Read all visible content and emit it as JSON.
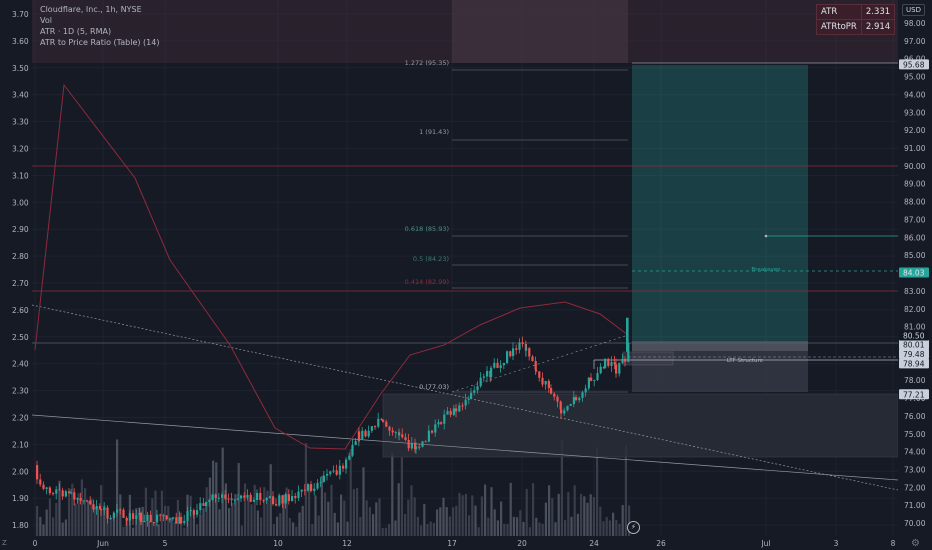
{
  "legend": {
    "symbol_line": "Cloudflare, Inc., 1h, NYSE",
    "vol_line": "Vol",
    "atr_line": "ATR · 1D (5, RMA)",
    "table_line": "ATR to Price Ratio (Table) (14)"
  },
  "atr_table": {
    "rows": [
      {
        "label": "ATR",
        "value": "2.331"
      },
      {
        "label": "ATRtoPR",
        "value": "2.914"
      }
    ]
  },
  "currency_button": "USD",
  "corner_label": "Z",
  "settings_icon": "gear-icon",
  "alert_icon": "lightning-icon",
  "left_axis": {
    "labels": [
      "3.70",
      "3.60",
      "3.50",
      "3.40",
      "3.30",
      "3.20",
      "3.10",
      "3.00",
      "2.90",
      "2.80",
      "2.70",
      "2.60",
      "2.50",
      "2.40",
      "2.30",
      "2.20",
      "2.10",
      "2.00",
      "1.90",
      "1.80"
    ]
  },
  "right_axis": {
    "labels": [
      "98.00",
      "97.00",
      "96.00",
      "95.00",
      "94.00",
      "93.00",
      "92.00",
      "91.00",
      "90.00",
      "89.00",
      "88.00",
      "87.00",
      "86.00",
      "85.00",
      "84.00",
      "83.00",
      "82.00",
      "81.00",
      "80.00",
      "79.00",
      "78.00",
      "77.00",
      "76.00",
      "75.00",
      "74.00",
      "73.00",
      "72.00",
      "71.00",
      "70.00"
    ]
  },
  "price_tags": [
    {
      "value": "95.68",
      "color": "#c9d0db",
      "text": "#131722"
    },
    {
      "value": "84.03",
      "color": "#26a69a",
      "text": "#e0e3eb"
    },
    {
      "value": "80.01",
      "color": "#c9d0db",
      "text": "#131722"
    },
    {
      "value": "80.50",
      "color": "#131722",
      "text": "#d1d4dc"
    },
    {
      "value": "79.48",
      "color": "#c9d0db",
      "text": "#131722"
    },
    {
      "value": "78.94",
      "color": "#c9d0db",
      "text": "#131722"
    },
    {
      "value": "77.21",
      "color": "#c9d0db",
      "text": "#131722"
    }
  ],
  "x_axis": {
    "labels": [
      "0",
      "Jun",
      "5",
      "10",
      "12",
      "17",
      "20",
      "24",
      "26",
      "Jul",
      "3",
      "8"
    ]
  },
  "fib_labels": [
    "1.272 (95.35)",
    "1 (91.43)",
    "0.618 (85.93)",
    "0.5 (84.23)",
    "0.414 (82.99)",
    "0 (77.03)"
  ],
  "annotations": {
    "breakeven": "Breakeven",
    "ltf": "LTF Structure"
  },
  "colors": {
    "background": "#161a25",
    "up": "#26a69a",
    "down": "#ef5350",
    "atr_line": "#8e2a3c",
    "target_zone": "#26a69a"
  }
}
